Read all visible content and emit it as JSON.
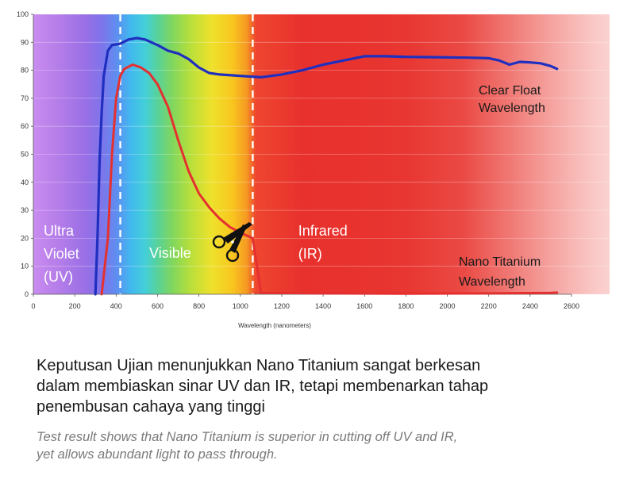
{
  "chart_data": {
    "type": "line",
    "xlabel": "Wavelength (nanometers)",
    "ylabel": "",
    "xlim": [
      0,
      2600
    ],
    "ylim": [
      0,
      100
    ],
    "x_ticks": [
      0,
      200,
      400,
      600,
      800,
      1000,
      1200,
      1400,
      1600,
      1800,
      2000,
      2200,
      2400,
      2600
    ],
    "y_ticks": [
      0,
      10,
      20,
      30,
      40,
      50,
      60,
      70,
      80,
      90,
      100
    ],
    "grid": true,
    "regions": [
      {
        "label_lines": [
          "Ultra",
          "Violet",
          "(UV)"
        ],
        "x_range": [
          0,
          420
        ]
      },
      {
        "label_lines": [
          "Visible"
        ],
        "x_range": [
          420,
          1060
        ]
      },
      {
        "label_lines": [
          "Infrared",
          "(IR)"
        ],
        "x_range": [
          1060,
          2600
        ]
      }
    ],
    "boundaries_x": [
      420,
      1060
    ],
    "series": [
      {
        "name_lines": [
          "Clear Float",
          "Wavelength"
        ],
        "color": "#1f2fbf",
        "x": [
          300,
          310,
          320,
          330,
          340,
          360,
          380,
          420,
          460,
          500,
          540,
          600,
          650,
          700,
          750,
          800,
          850,
          900,
          1000,
          1100,
          1200,
          1300,
          1400,
          1500,
          1600,
          1700,
          1800,
          1900,
          2000,
          2100,
          2200,
          2250,
          2300,
          2350,
          2400,
          2450,
          2500,
          2530
        ],
        "y": [
          0,
          20,
          47,
          65,
          78,
          87,
          89,
          89.5,
          91,
          91.5,
          91,
          89,
          87,
          86,
          84,
          81,
          79,
          78.5,
          78,
          77.5,
          78.5,
          80,
          82,
          83.5,
          85,
          85,
          84.8,
          84.7,
          84.6,
          84.5,
          84.3,
          83.5,
          82,
          83,
          82.8,
          82.5,
          81.5,
          80.5
        ]
      },
      {
        "name_lines": [
          "Nano Titanium",
          "Wavelength"
        ],
        "color": "#e53030",
        "x": [
          330,
          360,
          380,
          400,
          420,
          440,
          480,
          520,
          560,
          600,
          650,
          700,
          750,
          800,
          850,
          900,
          950,
          1000,
          1060,
          1100,
          1400,
          1800,
          2200,
          2500,
          2530
        ],
        "y": [
          0,
          20,
          50,
          70,
          78,
          80.5,
          82,
          81,
          79,
          75,
          67,
          55,
          44,
          36,
          31,
          27,
          24,
          22,
          20,
          0.5,
          0.3,
          0.2,
          0.3,
          0.5,
          0.6
        ]
      }
    ],
    "colors": {
      "blue_line": "#1f2fbf",
      "red_line": "#e53030",
      "ir_red": "#e8312d",
      "violet": "#b77be8",
      "yellow": "#f7e12a"
    }
  },
  "caption": {
    "malay_lines": [
      "Keputusan Ujian menunjukkan Nano Titanium sangat berkesan",
      "dalam membiaskan sinar UV dan IR, tetapi membenarkan tahap",
      "penembusan cahaya yang tinggi"
    ],
    "english_lines": [
      "Test result shows that Nano Titanium is superior in cutting off UV and IR,",
      "yet allows abundant light to pass through."
    ]
  },
  "icons": {
    "scissors": "scissors-icon"
  }
}
